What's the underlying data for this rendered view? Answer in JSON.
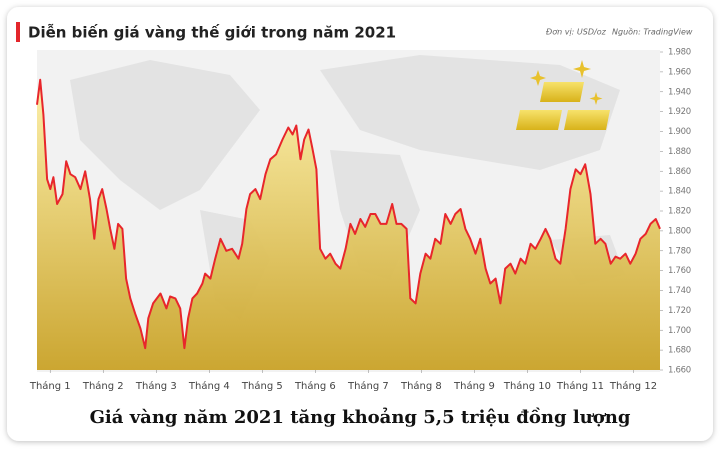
{
  "chart_data": {
    "type": "area",
    "title": "Diễn biến giá vàng thế giới trong năm 2021",
    "unit_note": "Đơn vị: USD/oz",
    "source": "Nguồn: TradingView",
    "caption": "Giá vàng năm 2021 tăng khoảng 5,5 triệu đồng lượng",
    "x": [
      0.75,
      0.81,
      0.87,
      0.94,
      1,
      1.06,
      1.13,
      1.23,
      1.3,
      1.38,
      1.47,
      1.57,
      1.66,
      1.75,
      1.83,
      1.91,
      1.98,
      2.06,
      2.13,
      2.21,
      2.28,
      2.36,
      2.43,
      2.51,
      2.6,
      2.7,
      2.79,
      2.85,
      2.94,
      3.08,
      3.19,
      3.26,
      3.36,
      3.45,
      3.53,
      3.6,
      3.68,
      3.77,
      3.87,
      3.92,
      4.02,
      4.11,
      4.21,
      4.32,
      4.43,
      4.55,
      4.62,
      4.7,
      4.77,
      4.87,
      4.96,
      5.06,
      5.15,
      5.26,
      5.38,
      5.49,
      5.57,
      5.64,
      5.72,
      5.79,
      5.87,
      5.94,
      6.02,
      6.09,
      6.19,
      6.28,
      6.38,
      6.47,
      6.57,
      6.66,
      6.75,
      6.85,
      6.94,
      7.04,
      7.13,
      7.23,
      7.34,
      7.45,
      7.53,
      7.62,
      7.72,
      7.79,
      7.89,
      7.98,
      8.08,
      8.17,
      8.26,
      8.36,
      8.45,
      8.55,
      8.64,
      8.74,
      8.83,
      8.92,
      9.02,
      9.11,
      9.21,
      9.3,
      9.4,
      9.49,
      9.58,
      9.68,
      9.77,
      9.87,
      9.96,
      10.06,
      10.15,
      10.25,
      10.34,
      10.43,
      10.53,
      10.62,
      10.72,
      10.81,
      10.91,
      11,
      11.09,
      11.19,
      11.28,
      11.38,
      11.47,
      11.57,
      11.66,
      11.75,
      11.85,
      11.94,
      12.04,
      12.13,
      12.23,
      12.32,
      12.42,
      12.5
    ],
    "series": [
      {
        "color": "#e8262b",
        "fill_top": "#fdf0a8",
        "fill_bottom": "#c9a227",
        "values": [
          1927,
          1952,
          1917,
          1852,
          1842,
          1854,
          1827,
          1837,
          1870,
          1857,
          1854,
          1842,
          1860,
          1832,
          1792,
          1832,
          1842,
          1822,
          1802,
          1782,
          1807,
          1802,
          1752,
          1732,
          1717,
          1702,
          1682,
          1712,
          1727,
          1737,
          1722,
          1734,
          1732,
          1722,
          1682,
          1712,
          1732,
          1737,
          1747,
          1757,
          1752,
          1772,
          1792,
          1780,
          1782,
          1772,
          1787,
          1822,
          1837,
          1842,
          1832,
          1857,
          1872,
          1877,
          1892,
          1904,
          1897,
          1906,
          1872,
          1892,
          1902,
          1884,
          1862,
          1782,
          1772,
          1777,
          1767,
          1762,
          1782,
          1807,
          1797,
          1812,
          1804,
          1817,
          1817,
          1807,
          1807,
          1827,
          1807,
          1807,
          1802,
          1732,
          1727,
          1757,
          1777,
          1772,
          1792,
          1787,
          1817,
          1807,
          1817,
          1822,
          1802,
          1792,
          1777,
          1792,
          1762,
          1747,
          1752,
          1727,
          1762,
          1767,
          1757,
          1772,
          1767,
          1787,
          1782,
          1792,
          1802,
          1792,
          1772,
          1767,
          1802,
          1842,
          1862,
          1857,
          1867,
          1837,
          1787,
          1792,
          1787,
          1767,
          1774,
          1772,
          1777,
          1767,
          1777,
          1792,
          1797,
          1807,
          1812,
          1802
        ]
      }
    ],
    "xlim": [
      0.75,
      12.5
    ],
    "xticks": [
      {
        "value": 1,
        "label": "Tháng 1"
      },
      {
        "value": 2,
        "label": "Tháng 2"
      },
      {
        "value": 3,
        "label": "Tháng 3"
      },
      {
        "value": 4,
        "label": "Tháng 4"
      },
      {
        "value": 5,
        "label": "Tháng 5"
      },
      {
        "value": 6,
        "label": "Tháng 6"
      },
      {
        "value": 7,
        "label": "Tháng 7"
      },
      {
        "value": 8,
        "label": "Tháng 8"
      },
      {
        "value": 9,
        "label": "Tháng 9"
      },
      {
        "value": 10,
        "label": "Tháng 10"
      },
      {
        "value": 11,
        "label": "Tháng 11"
      },
      {
        "value": 12,
        "label": "Tháng 12"
      }
    ],
    "ylim": [
      1660,
      1980
    ],
    "yticks": [
      {
        "value": 1660,
        "label": "1.660"
      },
      {
        "value": 1680,
        "label": "1.680"
      },
      {
        "value": 1700,
        "label": "1.700"
      },
      {
        "value": 1720,
        "label": "1.720"
      },
      {
        "value": 1740,
        "label": "1.740"
      },
      {
        "value": 1760,
        "label": "1.760"
      },
      {
        "value": 1780,
        "label": "1.780"
      },
      {
        "value": 1800,
        "label": "1.800"
      },
      {
        "value": 1820,
        "label": "1.820"
      },
      {
        "value": 1840,
        "label": "1.840"
      },
      {
        "value": 1860,
        "label": "1.860"
      },
      {
        "value": 1880,
        "label": "1.880"
      },
      {
        "value": 1900,
        "label": "1.900"
      },
      {
        "value": 1920,
        "label": "1.920"
      },
      {
        "value": 1940,
        "label": "1.940"
      },
      {
        "value": 1960,
        "label": "1.960"
      },
      {
        "value": 1980,
        "label": "1.980"
      }
    ],
    "grid": false
  }
}
